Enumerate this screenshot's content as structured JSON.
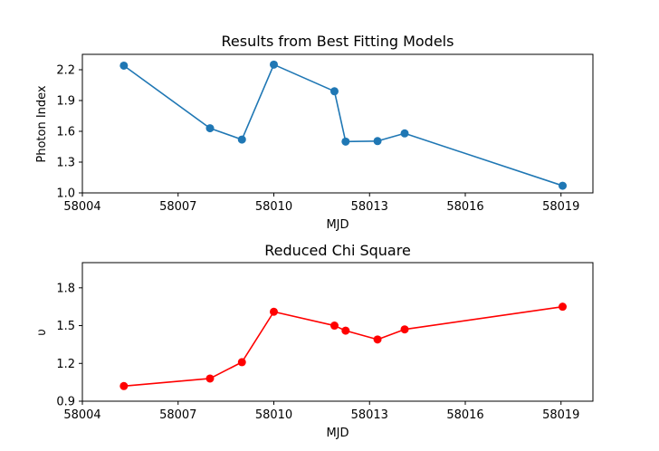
{
  "chart_data": [
    {
      "type": "line",
      "title": "Results from Best Fitting Models",
      "xlabel": "MJD",
      "ylabel": "Photon Index",
      "xlim": [
        58004,
        58020
      ],
      "ylim": [
        1.0,
        2.35
      ],
      "xticks": [
        58004,
        58007,
        58010,
        58013,
        58016,
        58019
      ],
      "xtick_labels": [
        "58004",
        "58007",
        "58010",
        "58013",
        "58016",
        "58019"
      ],
      "yticks": [
        1.0,
        1.3,
        1.6,
        1.9,
        2.2
      ],
      "ytick_labels": [
        "1.0",
        "1.3",
        "1.6",
        "1.9",
        "2.2"
      ],
      "grid": false,
      "series": [
        {
          "name": "Photon Index",
          "color": "#1f77b4",
          "marker": "circle",
          "x": [
            58005.3,
            58008.0,
            58009.0,
            58010.0,
            58011.9,
            58012.25,
            58013.25,
            58014.1,
            58019.05
          ],
          "y": [
            2.24,
            1.63,
            1.52,
            2.25,
            1.99,
            1.5,
            1.505,
            1.58,
            1.07
          ]
        }
      ]
    },
    {
      "type": "line",
      "title": "Reduced Chi Square",
      "xlabel": "MJD",
      "ylabel": "υ",
      "xlim": [
        58004,
        58020
      ],
      "ylim": [
        0.9,
        2.0
      ],
      "xticks": [
        58004,
        58007,
        58010,
        58013,
        58016,
        58019
      ],
      "xtick_labels": [
        "58004",
        "58007",
        "58010",
        "58013",
        "58016",
        "58019"
      ],
      "yticks": [
        0.9,
        1.2,
        1.5,
        1.8
      ],
      "ytick_labels": [
        "0.9",
        "1.2",
        "1.5",
        "1.8"
      ],
      "grid": false,
      "series": [
        {
          "name": "Reduced Chi Square",
          "color": "#ff0000",
          "marker": "circle",
          "x": [
            58005.3,
            58008.0,
            58009.0,
            58010.0,
            58011.9,
            58012.25,
            58013.25,
            58014.1,
            58019.05
          ],
          "y": [
            1.02,
            1.08,
            1.21,
            1.61,
            1.5,
            1.46,
            1.39,
            1.47,
            1.65
          ]
        }
      ]
    }
  ]
}
